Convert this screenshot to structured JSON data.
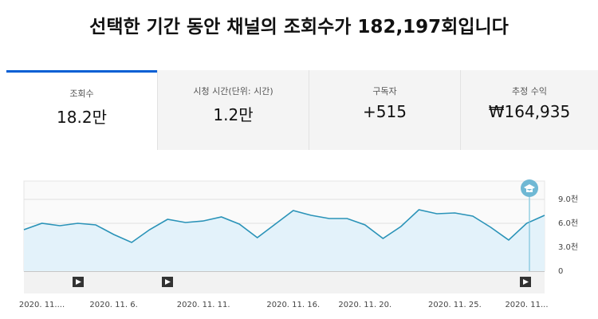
{
  "header": {
    "title": "선택한 기간 동안 채널의 조회수가 182,197회입니다"
  },
  "tabs": [
    {
      "label": "조회수",
      "value": "18.2만"
    },
    {
      "label": "시청 시간(단위: 시간)",
      "value": "1.2만"
    },
    {
      "label": "구독자",
      "value": "+515"
    },
    {
      "label": "추정 수익",
      "value": "₩164,935"
    }
  ],
  "chart_data": {
    "type": "line",
    "categories": [
      null,
      "2020. 11....",
      null,
      null,
      null,
      "2020. 11. 6.",
      null,
      null,
      null,
      null,
      "2020. 11. 11.",
      null,
      null,
      null,
      null,
      "2020. 11. 16.",
      null,
      null,
      null,
      "2020. 11. 20.",
      null,
      null,
      null,
      null,
      "2020. 11. 25.",
      null,
      null,
      null,
      "2020. 11...",
      null
    ],
    "series": [
      {
        "name": "조회수",
        "color": "#2a93b8",
        "values": [
          5200,
          6000,
          5700,
          6000,
          5800,
          4600,
          3600,
          5200,
          6500,
          6100,
          6300,
          6800,
          5900,
          4200,
          5900,
          7600,
          7000,
          6600,
          6600,
          5800,
          4100,
          5600,
          7700,
          7200,
          7300,
          6900,
          5500,
          3900,
          6000,
          7000
        ]
      }
    ],
    "ylim": [
      0,
      11300
    ],
    "yticks": [
      0,
      {
        "value": 3000,
        "label": "3.0천"
      },
      {
        "value": 6000,
        "label": "6.0천"
      },
      {
        "value": 9000,
        "label": "9.0천"
      }
    ],
    "grid": true
  }
}
